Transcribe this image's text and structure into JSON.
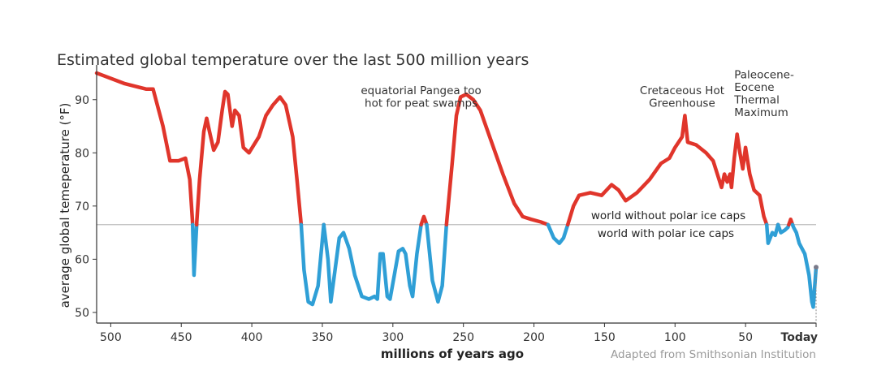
{
  "chart_data": {
    "type": "line",
    "title": "Estimated global temperature over the last 500 million years",
    "xlabel": "millions of years ago",
    "ylabel": "average global temeperature (°F)",
    "source": "Adapted from Smithsonian Institution",
    "xlim": [
      510,
      0
    ],
    "ylim": [
      48,
      95
    ],
    "x_ticks": [
      500,
      450,
      400,
      350,
      300,
      250,
      200,
      150,
      100,
      50,
      0
    ],
    "x_tick_labels": [
      "500",
      "450",
      "400",
      "350",
      "300",
      "250",
      "200",
      "150",
      "100",
      "50",
      "Today"
    ],
    "y_ticks": [
      50,
      60,
      70,
      80,
      90
    ],
    "threshold": 66.5,
    "threshold_labels": {
      "above": "world without polar ice caps",
      "below": "world with polar ice caps"
    },
    "colors": {
      "above": "#e0352b",
      "below": "#2f9fd6",
      "threshold_line": "#bbbbbb",
      "axis": "#333333"
    },
    "annotations": [
      {
        "id": "pangea",
        "lines": [
          "equatorial Pangea too",
          "hot for peat swamps"
        ],
        "x": 280,
        "y": 91,
        "anchor": "middle"
      },
      {
        "id": "cretaceous",
        "lines": [
          "Cretaceous Hot",
          "Greenhouse"
        ],
        "x": 95,
        "y": 91,
        "anchor": "middle"
      },
      {
        "id": "petm",
        "lines": [
          "Paleocene-",
          "Eocene",
          "Thermal",
          "Maximum"
        ],
        "x": 58,
        "y": 94,
        "anchor": "start"
      }
    ],
    "series": [
      {
        "points": [
          [
            510,
            95
          ],
          [
            490,
            93
          ],
          [
            475,
            92
          ],
          [
            470,
            92
          ],
          [
            463,
            85
          ],
          [
            458,
            78.5
          ],
          [
            452,
            78.5
          ],
          [
            447,
            79
          ],
          [
            444,
            75
          ],
          [
            442,
            67
          ],
          [
            441,
            57
          ],
          [
            439,
            67
          ],
          [
            437,
            75
          ],
          [
            434,
            84
          ],
          [
            432,
            86.5
          ],
          [
            430,
            84
          ],
          [
            427,
            80.5
          ],
          [
            424,
            82
          ],
          [
            421,
            88
          ],
          [
            419,
            91.5
          ],
          [
            417,
            91
          ],
          [
            414,
            85
          ],
          [
            412,
            88
          ],
          [
            409,
            87
          ],
          [
            406,
            81
          ],
          [
            402,
            80
          ],
          [
            395,
            83
          ],
          [
            390,
            87
          ],
          [
            385,
            89
          ],
          [
            380,
            90.5
          ],
          [
            376,
            89
          ],
          [
            371,
            83
          ],
          [
            368,
            75
          ],
          [
            365,
            66.5
          ],
          [
            363,
            58
          ],
          [
            360,
            52
          ],
          [
            357,
            51.5
          ],
          [
            353,
            55
          ],
          [
            349,
            66.5
          ],
          [
            346,
            60
          ],
          [
            344,
            52
          ],
          [
            341,
            58
          ],
          [
            338,
            64
          ],
          [
            335,
            65
          ],
          [
            331,
            62
          ],
          [
            327,
            57
          ],
          [
            322,
            53
          ],
          [
            317,
            52.5
          ],
          [
            313,
            53
          ],
          [
            311,
            52.5
          ],
          [
            309,
            61
          ],
          [
            307,
            61
          ],
          [
            304,
            53
          ],
          [
            302,
            52.5
          ],
          [
            299,
            57
          ],
          [
            296,
            61.5
          ],
          [
            293,
            62
          ],
          [
            291,
            61
          ],
          [
            288,
            55
          ],
          [
            286,
            53
          ],
          [
            283,
            61
          ],
          [
            280,
            66.5
          ],
          [
            278,
            68
          ],
          [
            276,
            66.5
          ],
          [
            272,
            56
          ],
          [
            268,
            52
          ],
          [
            265,
            55
          ],
          [
            262,
            66.5
          ],
          [
            258,
            78
          ],
          [
            255,
            87
          ],
          [
            252,
            90.5
          ],
          [
            248,
            91
          ],
          [
            243,
            90
          ],
          [
            238,
            88
          ],
          [
            230,
            82
          ],
          [
            222,
            76
          ],
          [
            214,
            70.5
          ],
          [
            208,
            68
          ],
          [
            202,
            67.5
          ],
          [
            195,
            67
          ],
          [
            190,
            66.5
          ],
          [
            186,
            64
          ],
          [
            182,
            63
          ],
          [
            179,
            64
          ],
          [
            176,
            66.5
          ],
          [
            172,
            70
          ],
          [
            168,
            72
          ],
          [
            160,
            72.5
          ],
          [
            152,
            72
          ],
          [
            145,
            74
          ],
          [
            140,
            73
          ],
          [
            135,
            71
          ],
          [
            127,
            72.5
          ],
          [
            118,
            75
          ],
          [
            110,
            78
          ],
          [
            104,
            79
          ],
          [
            100,
            81
          ],
          [
            95,
            83
          ],
          [
            93,
            87
          ],
          [
            91,
            82
          ],
          [
            85,
            81.5
          ],
          [
            78,
            80
          ],
          [
            73,
            78.5
          ],
          [
            70,
            76
          ],
          [
            67,
            73.5
          ],
          [
            65,
            76
          ],
          [
            63,
            74.5
          ],
          [
            61,
            76
          ],
          [
            60,
            73.5
          ],
          [
            58,
            79
          ],
          [
            56,
            83.5
          ],
          [
            54,
            80
          ],
          [
            52,
            77
          ],
          [
            50,
            81
          ],
          [
            47,
            76
          ],
          [
            44,
            73
          ],
          [
            40,
            72
          ],
          [
            37,
            68
          ],
          [
            35,
            66.5
          ],
          [
            34,
            63
          ],
          [
            31,
            65
          ],
          [
            29,
            64.5
          ],
          [
            27,
            66.5
          ],
          [
            25,
            65
          ],
          [
            22,
            65.5
          ],
          [
            20,
            66
          ],
          [
            18,
            67.5
          ],
          [
            16,
            66
          ],
          [
            14,
            65
          ],
          [
            12,
            63
          ],
          [
            8,
            61
          ],
          [
            5,
            57
          ],
          [
            3,
            52
          ],
          [
            2,
            51
          ],
          [
            0,
            58.5
          ]
        ]
      }
    ]
  }
}
